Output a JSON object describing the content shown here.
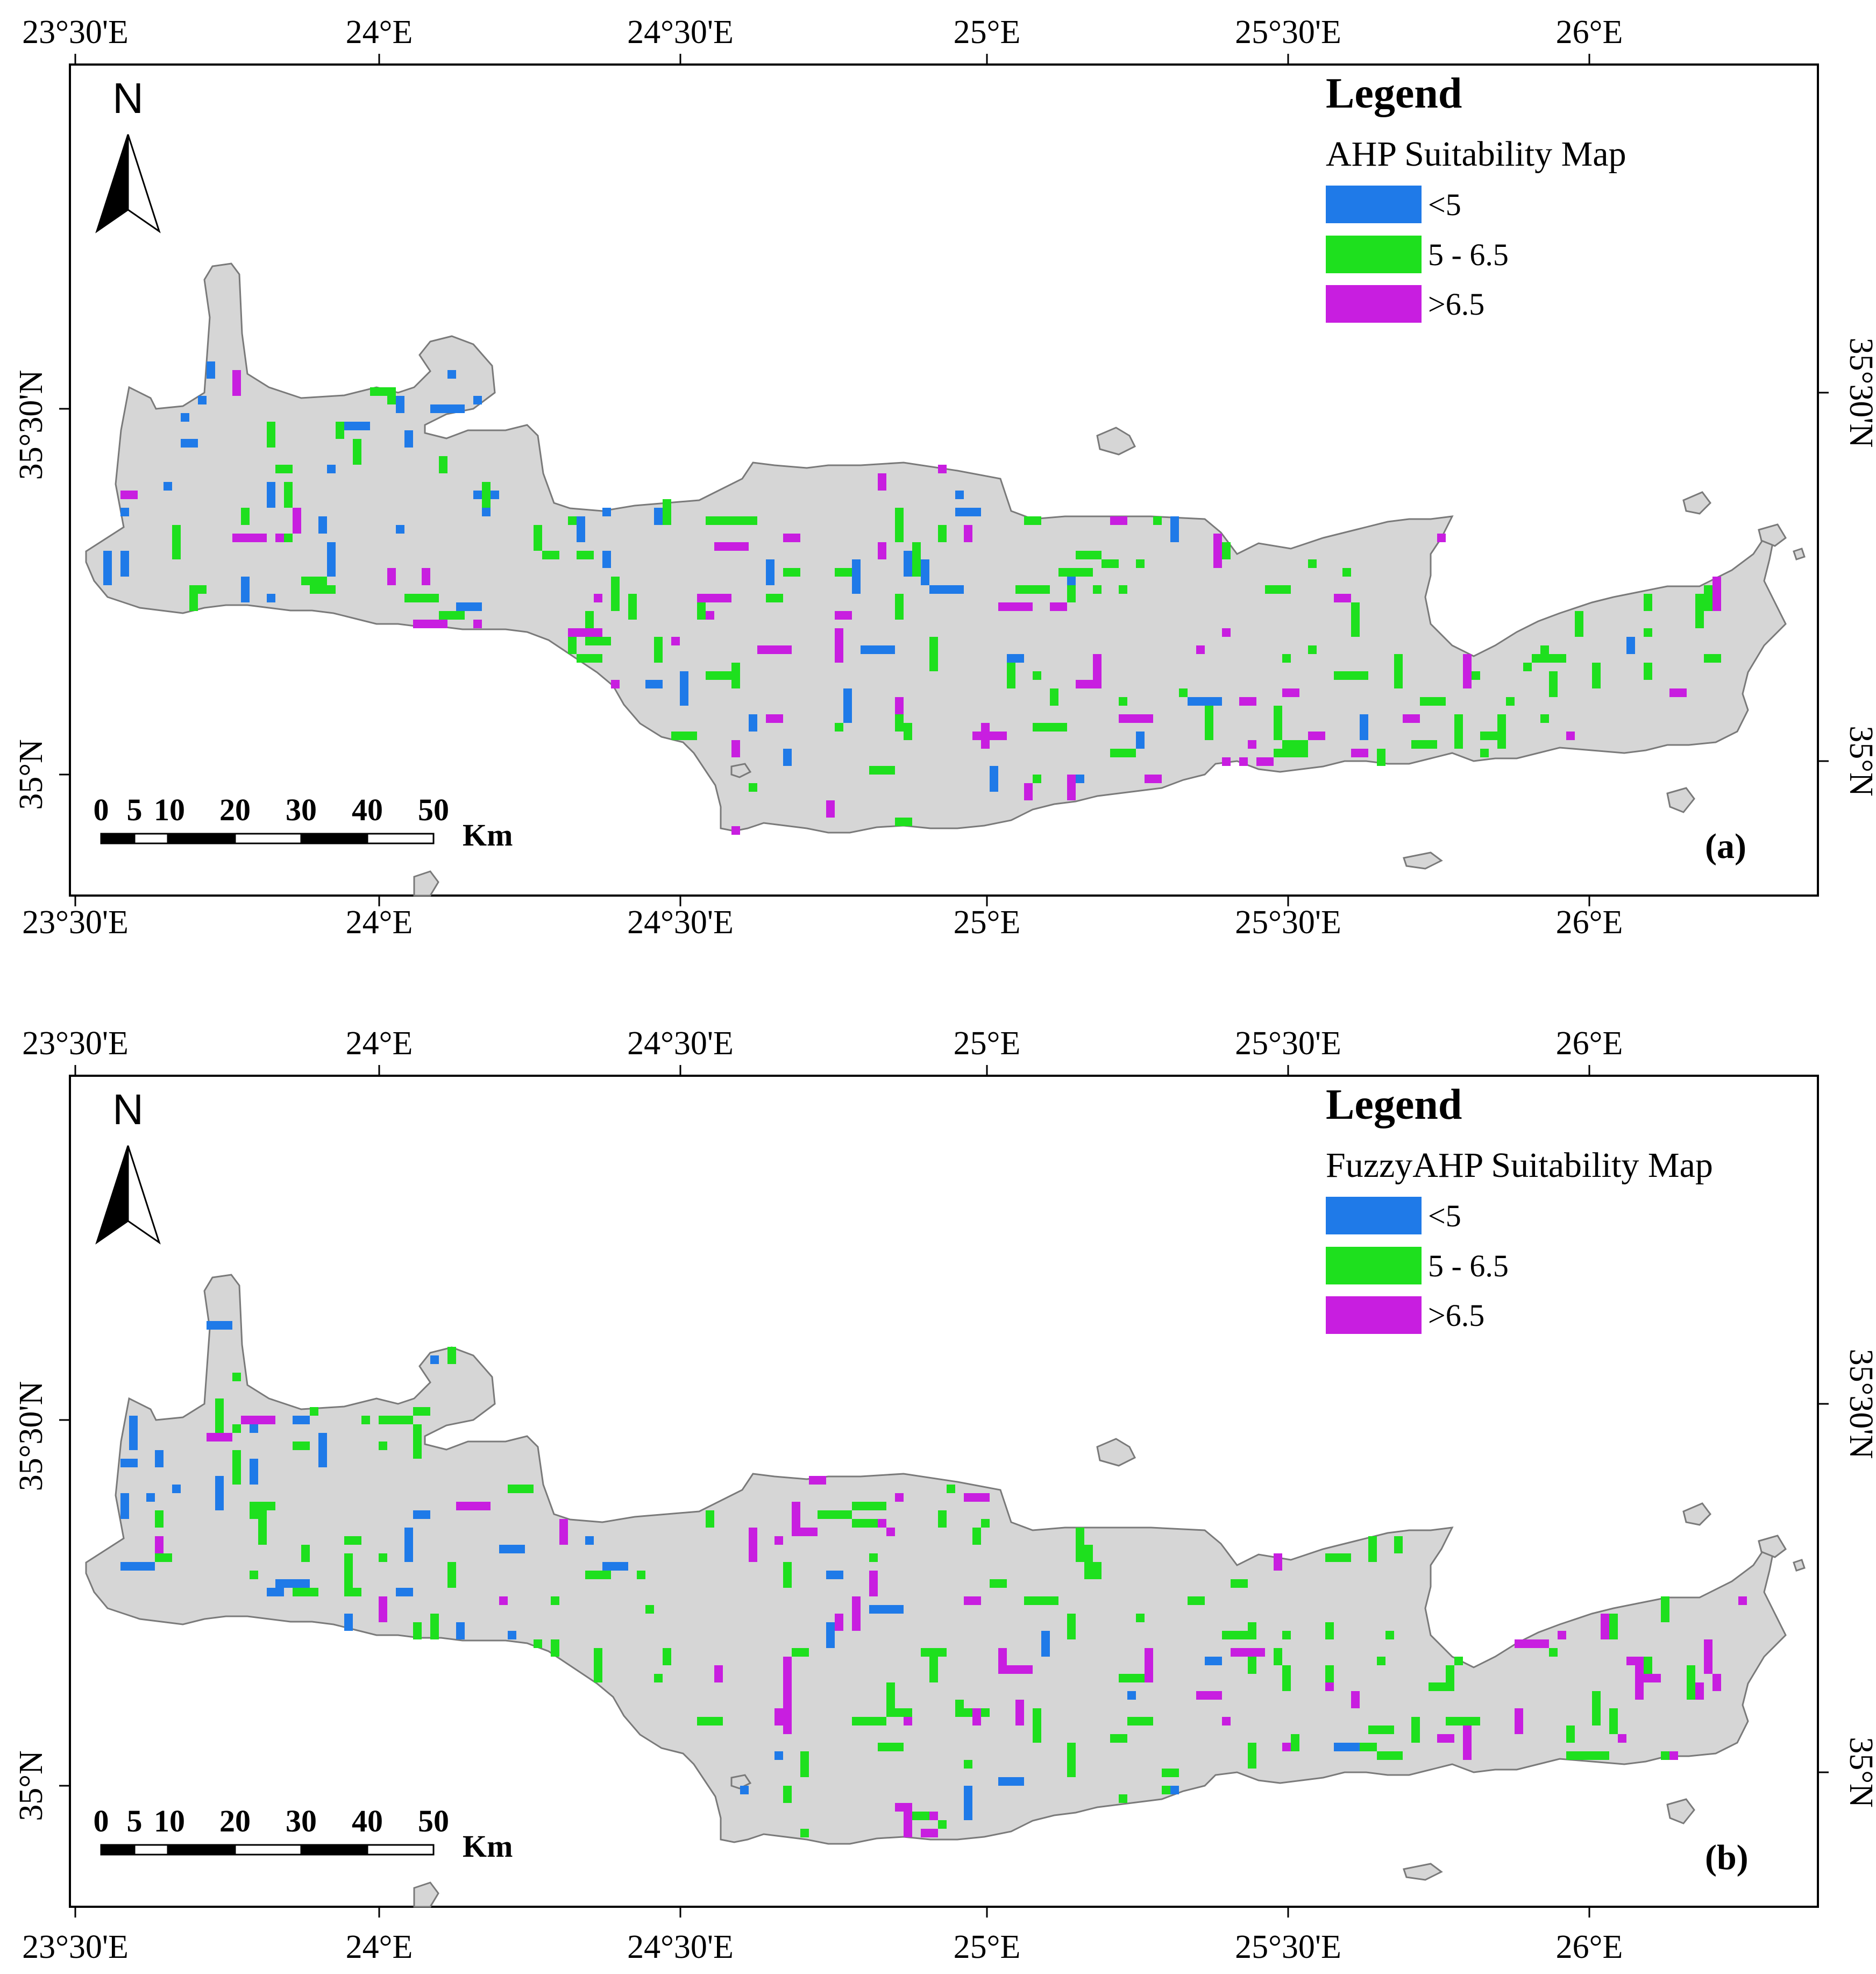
{
  "colors": {
    "low": "#1f7ae8",
    "mid": "#1ee01e",
    "high": "#c81ee0",
    "land": "#d6d6d6",
    "land_edge": "#7a7a7a",
    "frame": "#000000"
  },
  "axis_labels": {
    "lon": [
      "23°30'E",
      "24°E",
      "24°30'E",
      "25°E",
      "25°30'E",
      "26°E"
    ],
    "lat_top": "35°30'N",
    "lat_bottom": "35°N"
  },
  "north_arrow": {
    "letter": "N",
    "icon": "north-arrow-icon"
  },
  "scale_bar": {
    "numbers": [
      "0",
      "5",
      "10",
      "20",
      "30",
      "40",
      "50"
    ],
    "unit": "Km"
  },
  "legend_items": [
    {
      "label": "<5",
      "color_key": "low"
    },
    {
      "label": "5 - 6.5",
      "color_key": "mid"
    },
    {
      "label": ">6.5",
      "color_key": "high"
    }
  ],
  "panels": [
    {
      "legend_title": "Legend",
      "map_title": "AHP Suitability Map",
      "label": "(a)"
    },
    {
      "legend_title": "Legend",
      "map_title": "FuzzyAHP Suitability Map",
      "label": "(b)"
    }
  ]
}
